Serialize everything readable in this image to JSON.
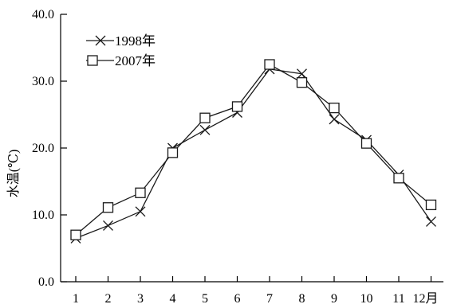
{
  "chart_data": {
    "type": "line",
    "x": [
      1,
      2,
      3,
      4,
      5,
      6,
      7,
      8,
      9,
      10,
      11,
      12
    ],
    "x_tick_labels": [
      "1",
      "2",
      "3",
      "4",
      "5",
      "6",
      "7",
      "8",
      "9",
      "10",
      "11",
      "12月"
    ],
    "ylabel": "水温(℃)",
    "ylim": [
      0,
      40
    ],
    "y_ticks": [
      0,
      10,
      20,
      30,
      40
    ],
    "y_tick_labels": [
      "0.0",
      "10.0",
      "20.0",
      "30.0",
      "40.0"
    ],
    "grid": false,
    "legend_position": "top-left",
    "series": [
      {
        "name": "1998年",
        "marker": "x",
        "values": [
          6.5,
          8.4,
          10.5,
          20.0,
          22.7,
          25.3,
          31.8,
          31.1,
          24.3,
          21.2,
          16.0,
          9.0
        ]
      },
      {
        "name": "2007年",
        "marker": "square",
        "values": [
          7.0,
          11.1,
          13.3,
          19.3,
          24.5,
          26.2,
          32.5,
          29.8,
          26.0,
          20.7,
          15.5,
          11.5
        ]
      }
    ]
  }
}
